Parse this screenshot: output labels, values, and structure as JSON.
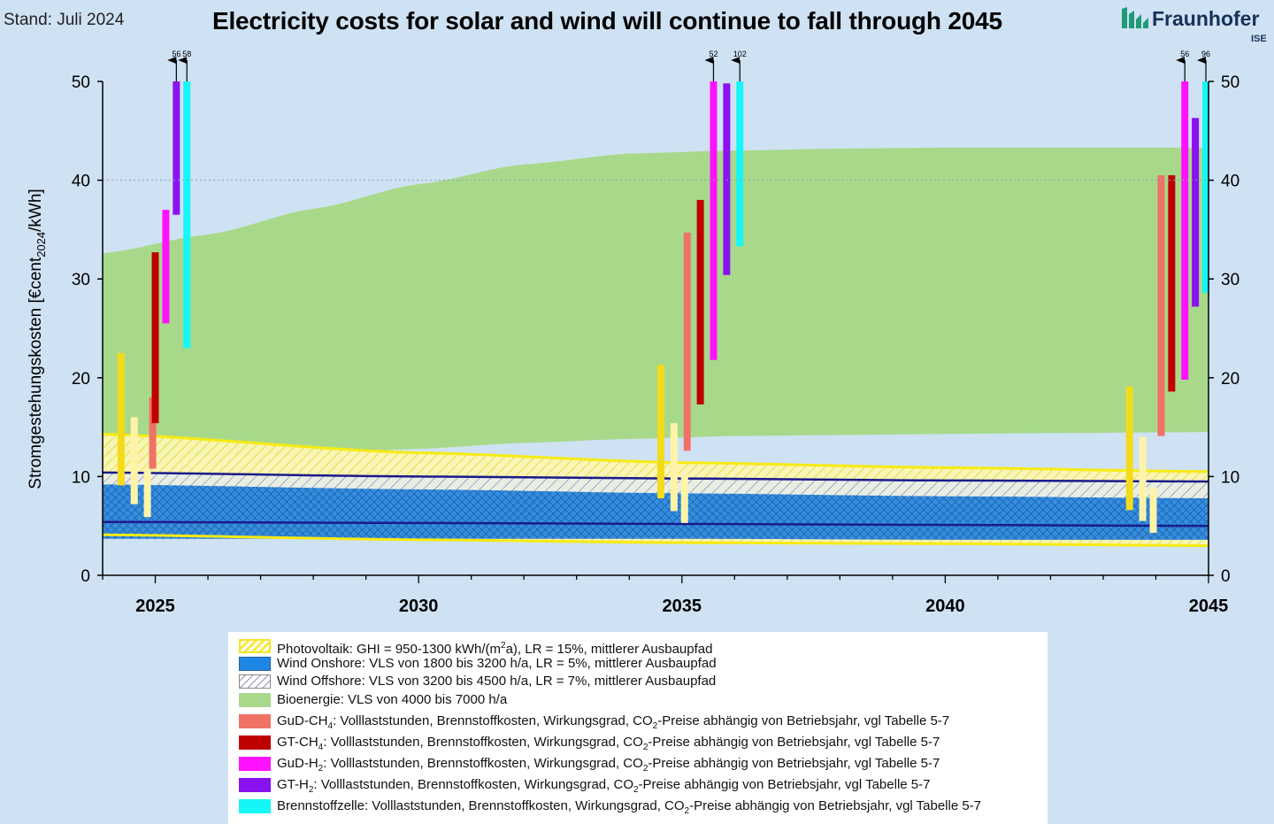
{
  "header": {
    "stand": "Stand: Juli 2024",
    "title": "Electricity costs for solar and wind will continue to fall through 2045",
    "logo_name": "Fraunhofer",
    "logo_sub": "ISE"
  },
  "chart_data": {
    "type": "area",
    "title": "Electricity costs for solar and wind will continue to fall through 2045",
    "ylabel": "Stromgestehungskosten [€cent2024/kWh]",
    "xlim": [
      2024,
      2045
    ],
    "ylim": [
      0,
      50
    ],
    "x_ticks": [
      2025,
      2030,
      2035,
      2040,
      2045
    ],
    "y_ticks": [
      0,
      10,
      20,
      30,
      40,
      50
    ],
    "grid_y_dotted_at": 40,
    "bands": [
      {
        "id": "bio",
        "name": "Bioenergie: VLS von 4000 bis 7000 h/a",
        "color": "#a8d98b",
        "x": [
          2024,
          2026,
          2028,
          2030,
          2032,
          2034,
          2036,
          2038,
          2040,
          2042,
          2045
        ],
        "lower": [
          11.3,
          12,
          12.3,
          12.8,
          13.4,
          13.8,
          14.1,
          14.2,
          14.3,
          14.4,
          14.5
        ],
        "upper": [
          32.6,
          34.5,
          37.1,
          39.6,
          41.6,
          42.7,
          43.0,
          43.2,
          43.3,
          43.3,
          43.3
        ]
      },
      {
        "id": "pv",
        "name": "Photovoltaik: GHI = 950-1300 kWh/(m²a), LR = 15%, mittlerer Ausbaupfad",
        "color": "#f5ec3a",
        "x": [
          2024,
          2030,
          2035,
          2040,
          2045
        ],
        "lower": [
          4.1,
          3.6,
          3.3,
          3.2,
          3.0
        ],
        "upper": [
          14.3,
          12.4,
          11.4,
          10.9,
          10.5
        ]
      },
      {
        "id": "offshore",
        "name": "Wind Offshore: VLS von 3200 bis 4500 h/a, LR = 7%, mittlerer Ausbaupfad",
        "color": "#d8e3d8",
        "x": [
          2024,
          2030,
          2035,
          2040,
          2045
        ],
        "lower": [
          5.4,
          5.3,
          5.2,
          5.1,
          5.0
        ],
        "upper": [
          10.4,
          10.0,
          9.8,
          9.6,
          9.5
        ]
      },
      {
        "id": "onshore",
        "name": "Wind Onshore: VLS von 1800 bis 3200 h/a, LR = 5%, mittlerer Ausbaupfad",
        "color": "#1e87e5",
        "x": [
          2024,
          2030,
          2035,
          2040,
          2045
        ],
        "lower": [
          3.7,
          3.7,
          3.7,
          3.6,
          3.6
        ],
        "upper": [
          9.2,
          8.7,
          8.3,
          8.0,
          7.8
        ]
      }
    ],
    "bars": [
      {
        "tech": "pv",
        "x": 2024.35,
        "low": 9.1,
        "high": 22.5,
        "color": "#f2dc1a"
      },
      {
        "tech": "pv_light",
        "x": 2024.6,
        "low": 7.2,
        "high": 16.0,
        "color": "#fff3a8"
      },
      {
        "tech": "pv_light",
        "x": 2024.85,
        "low": 5.9,
        "high": 10.6,
        "color": "#fff3a8"
      },
      {
        "tech": "gud_ch4",
        "x": 2024.95,
        "low": 10.8,
        "high": 18.0,
        "color": "#f07267"
      },
      {
        "tech": "gt_ch4",
        "x": 2025.0,
        "low": 15.4,
        "high": 32.7,
        "color": "#c00000"
      },
      {
        "tech": "gud_h2",
        "x": 2025.2,
        "low": 25.5,
        "high": 37.0,
        "color": "#ff12ff"
      },
      {
        "tech": "gt_h2",
        "x": 2025.4,
        "low": 36.5,
        "high": 50,
        "color": "#8a11f0",
        "arrow": "56"
      },
      {
        "tech": "bz",
        "x": 2025.6,
        "low": 23.0,
        "high": 50,
        "color": "#17f6f6",
        "arrow": "58"
      },
      {
        "tech": "pv",
        "x": 2034.6,
        "low": 7.8,
        "high": 21.3,
        "color": "#f2dc1a"
      },
      {
        "tech": "pv_light",
        "x": 2034.85,
        "low": 6.5,
        "high": 15.4,
        "color": "#fff3a8"
      },
      {
        "tech": "pv_light",
        "x": 2035.05,
        "low": 5.3,
        "high": 10.3,
        "color": "#fff3a8"
      },
      {
        "tech": "gud_ch4",
        "x": 2035.1,
        "low": 12.6,
        "high": 34.7,
        "color": "#f07267"
      },
      {
        "tech": "gt_ch4",
        "x": 2035.35,
        "low": 17.3,
        "high": 38.0,
        "color": "#c00000"
      },
      {
        "tech": "gud_h2",
        "x": 2035.6,
        "low": 21.8,
        "high": 50,
        "color": "#ff12ff",
        "arrow": "52"
      },
      {
        "tech": "gt_h2",
        "x": 2035.85,
        "low": 30.4,
        "high": 49.8,
        "color": "#8a11f0"
      },
      {
        "tech": "bz",
        "x": 2036.1,
        "low": 33.3,
        "high": 50,
        "color": "#17f6f6",
        "arrow": "102"
      },
      {
        "tech": "pv",
        "x": 2043.5,
        "low": 6.6,
        "high": 19.1,
        "color": "#f2dc1a"
      },
      {
        "tech": "pv_light",
        "x": 2043.75,
        "low": 5.5,
        "high": 14.0,
        "color": "#fff3a8"
      },
      {
        "tech": "pv_light",
        "x": 2043.95,
        "low": 4.3,
        "high": 8.9,
        "color": "#fff3a8"
      },
      {
        "tech": "gud_ch4",
        "x": 2044.1,
        "low": 14.1,
        "high": 40.5,
        "color": "#f07267"
      },
      {
        "tech": "gt_ch4",
        "x": 2044.3,
        "low": 18.6,
        "high": 40.5,
        "color": "#c00000"
      },
      {
        "tech": "gud_h2",
        "x": 2044.55,
        "low": 19.8,
        "high": 50,
        "color": "#ff12ff",
        "arrow": "56"
      },
      {
        "tech": "gt_h2",
        "x": 2044.75,
        "low": 27.2,
        "high": 46.3,
        "color": "#8a11f0"
      },
      {
        "tech": "bz",
        "x": 2044.95,
        "low": 28.6,
        "high": 50,
        "color": "#17f6f6",
        "arrow": "96"
      }
    ]
  },
  "legend": [
    {
      "id": "pv",
      "color": "#f5ec3a",
      "pattern": "pv",
      "pre": "Photovoltaik: GHI = 950-1300 kWh/(m",
      "sup": "2",
      "sub": "",
      "post": "a), LR = 15%, mittlerer Ausbaupfad"
    },
    {
      "id": "onshore",
      "color": "#1e87e5",
      "pattern": "onshore",
      "pre": "Wind Onshore: VLS von 1800 bis 3200 h/a, LR = 5%, mittlerer Ausbaupfad",
      "sup": "",
      "sub": "",
      "post": ""
    },
    {
      "id": "offshore",
      "color": "#ffffff",
      "pattern": "offshore",
      "pre": "Wind Offshore: VLS von 3200 bis 4500 h/a, LR = 7%, mittlerer Ausbaupfad",
      "sup": "",
      "sub": "",
      "post": ""
    },
    {
      "id": "bio",
      "color": "#a8d98b",
      "pattern": "solid",
      "pre": "Bioenergie: VLS von 4000 bis 7000 h/a",
      "sup": "",
      "sub": "",
      "post": ""
    },
    {
      "id": "gud_ch4",
      "color": "#f07267",
      "pattern": "solid",
      "pre": "GuD-CH",
      "sup": "",
      "sub": "4",
      "post": ": Volllaststunden, Brennstoffkosten, Wirkungsgrad, CO",
      "sub2": "2",
      "post2": "-Preise abhängig von Betriebsjahr, vgl Tabelle 5-7"
    },
    {
      "id": "gt_ch4",
      "color": "#c00000",
      "pattern": "solid",
      "pre": "GT-CH",
      "sup": "",
      "sub": "4",
      "post": ": Volllaststunden, Brennstoffkosten, Wirkungsgrad, CO",
      "sub2": "2",
      "post2": "-Preise abhängig von Betriebsjahr, vgl Tabelle 5-7"
    },
    {
      "id": "gud_h2",
      "color": "#ff12ff",
      "pattern": "solid",
      "pre": "GuD-H",
      "sup": "",
      "sub": "2",
      "post": ": Volllaststunden, Brennstoffkosten, Wirkungsgrad, CO",
      "sub2": "2",
      "post2": "-Preise abhängig von Betriebsjahr, vgl Tabelle 5-7"
    },
    {
      "id": "gt_h2",
      "color": "#8a11f0",
      "pattern": "solid",
      "pre": "GT-H",
      "sup": "",
      "sub": "2",
      "post": ": Volllaststunden, Brennstoffkosten, Wirkungsgrad, CO",
      "sub2": "2",
      "post2": "-Preise abhängig von Betriebsjahr, vgl Tabelle 5-7"
    },
    {
      "id": "bz",
      "color": "#17f6f6",
      "pattern": "solid",
      "pre": "Brennstoffzelle: Volllaststunden, Brennstoffkosten, Wirkungsgrad, CO",
      "sup": "",
      "sub": "2",
      "post": "-Preise abhängig von Betriebsjahr, vgl Tabelle 5-7"
    }
  ]
}
